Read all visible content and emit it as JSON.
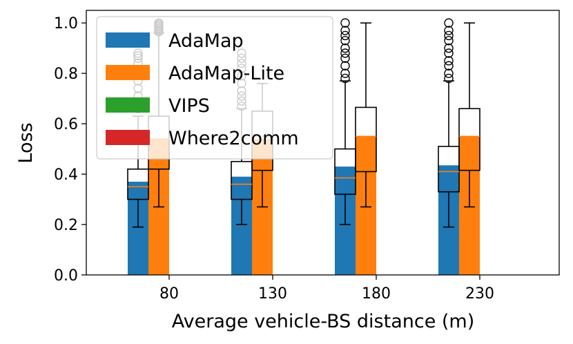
{
  "chart_data": {
    "type": "bar",
    "xlabel": "Average vehicle-BS distance (m)",
    "ylabel": "Loss",
    "categories": [
      "80",
      "130",
      "180",
      "230"
    ],
    "ylim": [
      0,
      1.05
    ],
    "yticks": [
      0.0,
      0.2,
      0.4,
      0.6,
      0.8,
      1.0
    ],
    "ytick_labels": [
      "0.0",
      "0.2",
      "0.4",
      "0.6",
      "0.8",
      "1.0"
    ],
    "legend_position": "upper-left",
    "series": [
      {
        "name": "AdaMap",
        "color": "#1f77b4",
        "values": [
          0.37,
          0.39,
          0.43,
          0.435
        ]
      },
      {
        "name": "AdaMap-Lite",
        "color": "#ff7f0e",
        "values": [
          0.54,
          0.54,
          0.55,
          0.55
        ]
      },
      {
        "name": "VIPS",
        "color": "#2ca02c",
        "values": [
          0.0,
          0.0,
          0.0,
          0.0
        ]
      },
      {
        "name": "Where2comm",
        "color": "#d62728",
        "values": [
          0.0,
          0.0,
          0.0,
          0.0
        ]
      }
    ],
    "boxplots": [
      {
        "series": "AdaMap",
        "category": "80",
        "whislo": 0.19,
        "q1": 0.3,
        "median": 0.35,
        "q3": 0.42,
        "whishi": 0.63,
        "fliers": [
          0.66,
          0.71,
          0.74,
          0.77,
          0.84,
          0.86,
          0.87,
          0.88
        ]
      },
      {
        "series": "AdaMap-Lite",
        "category": "80",
        "whislo": 0.27,
        "q1": 0.42,
        "median": 0.54,
        "q3": 0.63,
        "whishi": 0.96,
        "fliers": [
          0.965,
          0.97,
          0.975,
          0.98,
          0.985,
          0.99,
          0.995,
          1.0
        ]
      },
      {
        "series": "AdaMap",
        "category": "130",
        "whislo": 0.2,
        "q1": 0.3,
        "median": 0.36,
        "q3": 0.45,
        "whishi": 0.66,
        "fliers": [
          0.67,
          0.69,
          0.71,
          0.73,
          0.76,
          0.79,
          0.82,
          0.84,
          0.86,
          0.88
        ]
      },
      {
        "series": "AdaMap-Lite",
        "category": "130",
        "whislo": 0.27,
        "q1": 0.415,
        "median": 0.55,
        "q3": 0.65,
        "whishi": 0.76,
        "fliers": []
      },
      {
        "series": "AdaMap",
        "category": "180",
        "whislo": 0.2,
        "q1": 0.32,
        "median": 0.385,
        "q3": 0.5,
        "whishi": 0.77,
        "fliers": [
          0.78,
          0.8,
          0.83,
          0.86,
          0.88,
          0.9,
          0.93,
          0.95,
          0.97,
          1.0
        ]
      },
      {
        "series": "AdaMap-Lite",
        "category": "180",
        "whislo": 0.27,
        "q1": 0.41,
        "median": 0.55,
        "q3": 0.665,
        "whishi": 1.0,
        "fliers": []
      },
      {
        "series": "AdaMap",
        "category": "230",
        "whislo": 0.19,
        "q1": 0.33,
        "median": 0.41,
        "q3": 0.51,
        "whishi": 0.77,
        "fliers": [
          0.78,
          0.8,
          0.83,
          0.85,
          0.88,
          0.9,
          0.93,
          0.95,
          0.97,
          1.0
        ]
      },
      {
        "series": "AdaMap-Lite",
        "category": "230",
        "whislo": 0.27,
        "q1": 0.415,
        "median": 0.55,
        "q3": 0.66,
        "whishi": 1.0,
        "fliers": []
      }
    ]
  }
}
